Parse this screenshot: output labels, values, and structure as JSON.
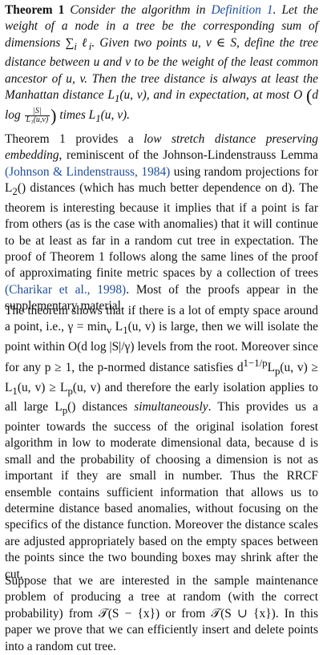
{
  "theorem": {
    "label": "Theorem 1",
    "s1": "Consider the algorithm in",
    "def_ref": "Definition 1",
    "s2": ". Let the weight of a node in a tree be the corresponding sum of dimensions ∑",
    "sum_sub": "i",
    "s3": " ℓ",
    "s3_sub": "i",
    "s4": ". Given two points u, v ∈ S, define the tree distance between u and v to be the weight of the least common ancestor of u, v. Then the tree distance is always at least the Manhattan distance L",
    "l_sub": "1",
    "s5": "(u, v), and in expectation, at most O",
    "s6": "d log",
    "frac_num": "|S|",
    "frac_den": "L₁(u,v)",
    "s7": " times L",
    "s8": "(u, v)."
  },
  "para1": {
    "a": "Theorem 1 provides a ",
    "emph": "low stretch distance preserving embedding",
    "b": ", reminiscent of the Johnson-Lindenstrauss Lemma ",
    "cite1": "(Johnson & Lindenstrauss, 1984)",
    "c": " using random projections for L",
    "c_sub": "2",
    "d": "() distances (which has much better dependence on d). The theorem is interesting because it implies that if a point is far from others (as is the case with anomalies) that it will continue to be at least as far in a random cut tree in expectation. The proof of Theorem 1 follows along the same lines of the proof of approximating finite metric spaces by a collection of trees ",
    "cite2": "(Charikar et al., 1998)",
    "e": ". Most of the proofs appear in the supplementary material."
  },
  "para2": {
    "a": "The theorem shows that if there is a lot of empty space around a point, i.e., γ = min",
    "a_sub": "v",
    "b": " L",
    "b_sub": "1",
    "c": "(u, v) is large, then we will isolate the point within O(d log |S|/γ) levels from the root. Moreover since for any p ≥ 1, the p-normed distance satisfies d",
    "c_sup": "1−1/p",
    "d": "L",
    "d_sub": "p",
    "e": "(u, v) ≥ L",
    "e_sub": "1",
    "f": "(u, v) ≥ L",
    "f_sub": "p",
    "g": "(u, v) and therefore the early isolation applies to all large L",
    "g_sub": "p",
    "h": "() distances ",
    "emph": "simultaneously",
    "i": ". This provides us a pointer towards the success of the original isolation forest algorithm in low to moderate dimensional data, because d is small and the probability of choosing a dimension is not as important if they are small in number. Thus the RRCF ensemble contains sufficient information that allows us to determine distance based anomalies, without focusing on the specifics of the distance function. Moreover the distance scales are adjusted appropriately based on the empty spaces between the points since the two bounding boxes may shrink after the cut."
  },
  "para3": {
    "text": "Suppose that we are interested in the sample maintenance problem of producing a tree at random (with the correct probability) from 𝒯(S − {x}) or from 𝒯(S ∪ {x}). In this paper we prove that we can efficiently insert and delete points into a random cut tree."
  }
}
